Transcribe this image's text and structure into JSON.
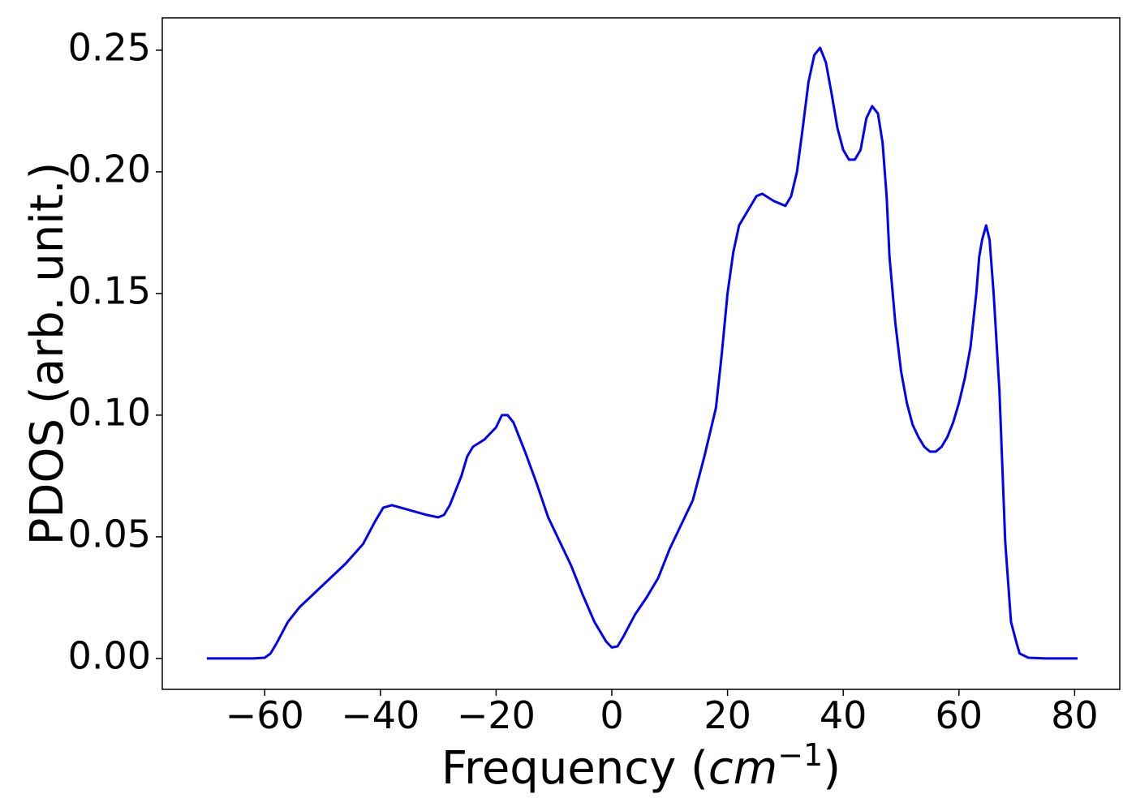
{
  "chart_data": {
    "type": "line",
    "xlabel": {
      "text": "Frequency (",
      "unit": "cm",
      "exponent": "−1",
      "close": ")"
    },
    "ylabel": "PDOS (arb. unit.)",
    "xlim": [
      -77.7,
      87.8
    ],
    "ylim": [
      -0.0127,
      0.2633
    ],
    "xticks": [
      {
        "value": -60,
        "label": "−60"
      },
      {
        "value": -40,
        "label": "−40"
      },
      {
        "value": -20,
        "label": "−20"
      },
      0,
      20,
      40,
      60,
      80
    ],
    "yticks": [
      {
        "value": 0,
        "label": "0.00"
      },
      {
        "value": 0.05,
        "label": "0.05"
      },
      {
        "value": 0.1,
        "label": "0.10"
      },
      {
        "value": 0.15,
        "label": "0.15"
      },
      {
        "value": 0.2,
        "label": "0.20"
      },
      {
        "value": 0.25,
        "label": "0.25"
      }
    ],
    "series": [
      {
        "color": "#0000ff",
        "x": [
          -70,
          -62,
          -60,
          -59,
          -58,
          -56,
          -54,
          -50,
          -46,
          -43,
          -41,
          -39.5,
          -38,
          -35,
          -32,
          -30,
          -29,
          -28,
          -26,
          -25,
          -24,
          -22,
          -20,
          -19,
          -18,
          -17,
          -15,
          -13,
          -11,
          -9,
          -7,
          -5,
          -3,
          -1,
          0,
          1,
          2,
          4,
          6,
          8,
          10,
          12,
          14,
          16,
          18,
          19,
          20,
          21,
          22,
          24,
          25,
          26,
          28,
          30,
          31,
          32,
          33,
          34,
          35,
          36,
          37,
          38,
          39,
          40,
          41,
          42,
          43,
          44,
          45,
          46,
          46.8,
          47.5,
          48,
          49,
          50,
          51,
          52,
          53,
          54,
          55,
          56,
          57,
          58,
          59,
          60,
          61,
          62,
          63,
          63.5,
          64,
          64.7,
          65.3,
          66,
          67,
          68,
          69,
          70,
          70.5,
          72,
          75,
          80.5
        ],
        "values": [
          0,
          0,
          0.0003,
          0.002,
          0.006,
          0.015,
          0.021,
          0.03,
          0.039,
          0.047,
          0.056,
          0.062,
          0.063,
          0.061,
          0.059,
          0.058,
          0.059,
          0.063,
          0.075,
          0.083,
          0.087,
          0.09,
          0.095,
          0.1,
          0.1,
          0.097,
          0.085,
          0.072,
          0.058,
          0.048,
          0.038,
          0.026,
          0.015,
          0.007,
          0.0045,
          0.005,
          0.009,
          0.018,
          0.025,
          0.033,
          0.045,
          0.055,
          0.065,
          0.083,
          0.103,
          0.125,
          0.15,
          0.167,
          0.178,
          0.186,
          0.19,
          0.191,
          0.188,
          0.186,
          0.19,
          0.2,
          0.218,
          0.237,
          0.248,
          0.251,
          0.245,
          0.232,
          0.218,
          0.209,
          0.205,
          0.205,
          0.209,
          0.222,
          0.227,
          0.224,
          0.212,
          0.19,
          0.165,
          0.138,
          0.118,
          0.105,
          0.096,
          0.091,
          0.087,
          0.085,
          0.085,
          0.087,
          0.091,
          0.097,
          0.105,
          0.115,
          0.128,
          0.15,
          0.165,
          0.172,
          0.178,
          0.172,
          0.15,
          0.11,
          0.048,
          0.015,
          0.006,
          0.002,
          0.0003,
          0,
          0
        ]
      }
    ]
  }
}
